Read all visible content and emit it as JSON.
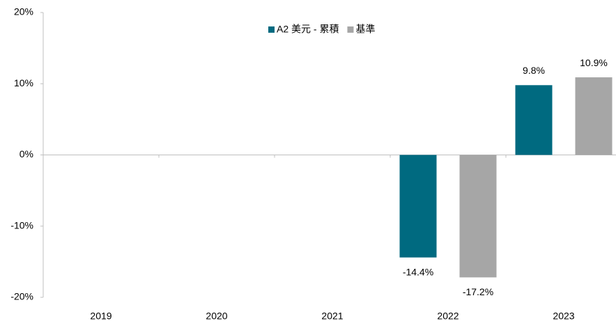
{
  "chart_data": {
    "type": "bar",
    "categories": [
      "2019",
      "2020",
      "2021",
      "2022",
      "2023"
    ],
    "series": [
      {
        "name": "A2 美元 - 累積",
        "color": "#006a80",
        "values": [
          null,
          null,
          null,
          -14.4,
          9.8
        ],
        "value_labels": [
          null,
          null,
          null,
          "-14.4%",
          "9.8%"
        ]
      },
      {
        "name": "基準",
        "color": "#a6a6a6",
        "values": [
          null,
          null,
          null,
          -17.2,
          10.9
        ],
        "value_labels": [
          null,
          null,
          null,
          "-17.2%",
          "10.9%"
        ]
      }
    ],
    "ylim": [
      -20,
      20
    ],
    "yticks": [
      {
        "value": -20,
        "label": "-20%"
      },
      {
        "value": -10,
        "label": "-10%"
      },
      {
        "value": 0,
        "label": "0%"
      },
      {
        "value": 10,
        "label": "10%"
      },
      {
        "value": 20,
        "label": "20%"
      }
    ],
    "legend": "top"
  }
}
